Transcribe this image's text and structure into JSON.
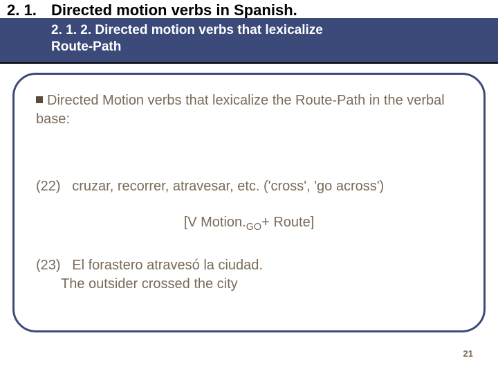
{
  "colors": {
    "header_bg": "#ffffff",
    "header_text": "#000000",
    "sub_bg": "#3c4a7a",
    "sub_text": "#ffffff",
    "body_text": "#7a6a58",
    "bullet": "#5a4a38",
    "box_border": "#3c4a7a",
    "page_bg": "#ffffff"
  },
  "typography": {
    "section_number_size": 22,
    "section_title_size": 22,
    "sub_size": 19,
    "body_size": 20,
    "pagenum_size": 13
  },
  "layout": {
    "box_border_width": 3,
    "header_border_width": 2
  },
  "header": {
    "number": "2. 1.",
    "title": "Directed motion verbs in Spanish.",
    "sub_number": "2. 1. 2.",
    "sub_title_line1": "Directed motion verbs that lexicalize",
    "sub_title_line2": "Route-Path"
  },
  "content": {
    "intro": "Directed Motion verbs that lexicalize the Route-Path in the verbal base:",
    "ex22_label": "(22)",
    "ex22_text": "cruzar, recorrer, atravesar, etc. ('cross', 'go across')",
    "formula_pre": "[V Motion.",
    "formula_sub": "GO",
    "formula_post": "+ Route]",
    "ex23_label": "(23)",
    "ex23_text": "El forastero atravesó la ciudad.",
    "ex23_trans": "The outsider crossed the city"
  },
  "page_number": "21"
}
